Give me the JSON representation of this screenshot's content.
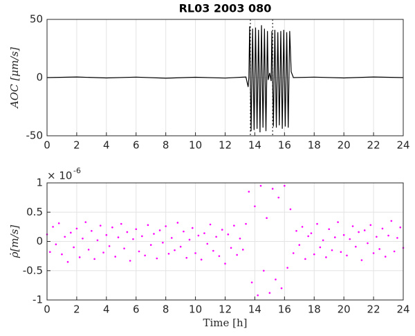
{
  "chart_data": [
    {
      "type": "line",
      "title": "RL03  2003 080",
      "ylabel": "AOC [μm/s]",
      "color": "#000000",
      "grid": true,
      "x": [
        0,
        2,
        4,
        6,
        8,
        10,
        12,
        13.4,
        13.55,
        13.6,
        13.65,
        13.75,
        13.85,
        13.95,
        14.05,
        14.15,
        14.25,
        14.35,
        14.45,
        14.55,
        14.65,
        14.75,
        14.85,
        14.9,
        15.0,
        15.1,
        15.15,
        15.25,
        15.35,
        15.45,
        15.55,
        15.65,
        15.75,
        15.85,
        15.95,
        16.05,
        16.15,
        16.25,
        16.35,
        16.45,
        16.6,
        18,
        20,
        22,
        24
      ],
      "values": [
        0,
        0.5,
        -0.3,
        0.4,
        -0.5,
        0.3,
        -0.4,
        0.5,
        -8,
        0,
        44,
        -46,
        42,
        -45,
        43,
        -44,
        41,
        -47,
        45,
        -43,
        42,
        -46,
        40,
        -2,
        4,
        -3,
        40,
        -42,
        41,
        -43,
        39,
        -41,
        40,
        -44,
        41,
        -42,
        39,
        -43,
        40,
        5,
        0,
        0.4,
        -0.3,
        0.5,
        0
      ],
      "vlines": [
        13.7,
        15.2
      ],
      "xlim": [
        0,
        24
      ],
      "xticks": [
        0,
        2,
        4,
        6,
        8,
        10,
        12,
        14,
        16,
        18,
        20,
        22,
        24
      ],
      "ylim": [
        -50,
        50
      ],
      "yticks": [
        -50,
        0,
        50
      ]
    },
    {
      "type": "scatter",
      "ylabel": "ρ̇[m/s]",
      "xlabel": "Time [h]",
      "color": "#ff00ff",
      "grid": true,
      "y_multiplier": {
        "base": "× 10",
        "exponent": "-6"
      },
      "x": [
        0,
        0.2,
        0.4,
        0.6,
        0.8,
        1,
        1.2,
        1.4,
        1.6,
        1.8,
        2,
        2.2,
        2.4,
        2.6,
        2.8,
        3,
        3.2,
        3.4,
        3.6,
        3.8,
        4,
        4.2,
        4.4,
        4.6,
        4.8,
        5,
        5.2,
        5.4,
        5.6,
        5.8,
        6,
        6.2,
        6.4,
        6.6,
        6.8,
        7,
        7.2,
        7.4,
        7.6,
        7.8,
        8,
        8.2,
        8.4,
        8.6,
        8.8,
        9,
        9.2,
        9.4,
        9.6,
        9.8,
        10,
        10.2,
        10.4,
        10.6,
        10.8,
        11,
        11.2,
        11.4,
        11.6,
        11.8,
        12,
        12.2,
        12.4,
        12.6,
        12.8,
        13,
        13.2,
        13.4,
        13.6,
        13.8,
        14,
        14.2,
        14.4,
        14.6,
        14.8,
        15,
        15.2,
        15.4,
        15.6,
        15.8,
        16,
        16.2,
        16.4,
        16.6,
        16.8,
        17,
        17.2,
        17.4,
        17.6,
        17.8,
        18,
        18.2,
        18.4,
        18.6,
        18.8,
        19,
        19.2,
        19.4,
        19.6,
        19.8,
        20,
        20.2,
        20.4,
        20.6,
        20.8,
        21,
        21.2,
        21.4,
        21.6,
        21.8,
        22,
        22.2,
        22.4,
        22.6,
        22.8,
        23,
        23.2,
        23.4,
        23.6,
        23.8,
        24
      ],
      "values": [
        0.12,
        -0.18,
        0.25,
        -0.05,
        0.31,
        -0.22,
        0.08,
        -0.35,
        0.15,
        -0.1,
        0.22,
        -0.27,
        0.05,
        0.33,
        -0.14,
        0.18,
        -0.3,
        0.02,
        0.27,
        -0.19,
        0.11,
        -0.08,
        0.24,
        -0.26,
        0.07,
        0.3,
        -0.12,
        0.16,
        -0.33,
        0.04,
        0.21,
        -0.17,
        0.09,
        -0.24,
        0.28,
        -0.06,
        0.13,
        -0.29,
        0.19,
        -0.02,
        0.26,
        -0.21,
        0.06,
        -0.15,
        0.32,
        -0.09,
        0.17,
        -0.28,
        0.03,
        0.23,
        -0.2,
        0.1,
        -0.31,
        0.14,
        -0.04,
        0.29,
        -0.16,
        0.08,
        -0.25,
        0.2,
        -0.38,
        0.12,
        -0.11,
        0.27,
        -0.23,
        0.05,
        -0.14,
        0.3,
        0.85,
        -0.7,
        0.6,
        -0.92,
        0.95,
        -0.5,
        0.4,
        -0.88,
        0.9,
        -0.65,
        0.75,
        -0.8,
        0.95,
        -0.45,
        0.55,
        -0.2,
        0.18,
        -0.06,
        0.25,
        -0.3,
        0.09,
        0.14,
        -0.22,
        0.3,
        -0.1,
        0.02,
        -0.27,
        0.21,
        -0.15,
        0.07,
        0.33,
        -0.18,
        0.11,
        -0.24,
        0.04,
        0.26,
        -0.09,
        0.16,
        -0.32,
        0.19,
        -0.03,
        0.28,
        -0.2,
        0.08,
        -0.13,
        0.22,
        -0.26,
        0.1,
        0.35,
        -0.17,
        0.06,
        0.24,
        -0.11
      ],
      "xlim": [
        0,
        24
      ],
      "xticks": [
        0,
        2,
        4,
        6,
        8,
        10,
        12,
        14,
        16,
        18,
        20,
        22,
        24
      ],
      "ylim": [
        -1,
        1
      ],
      "yticks": [
        -1,
        -0.5,
        0,
        0.5,
        1
      ]
    }
  ]
}
